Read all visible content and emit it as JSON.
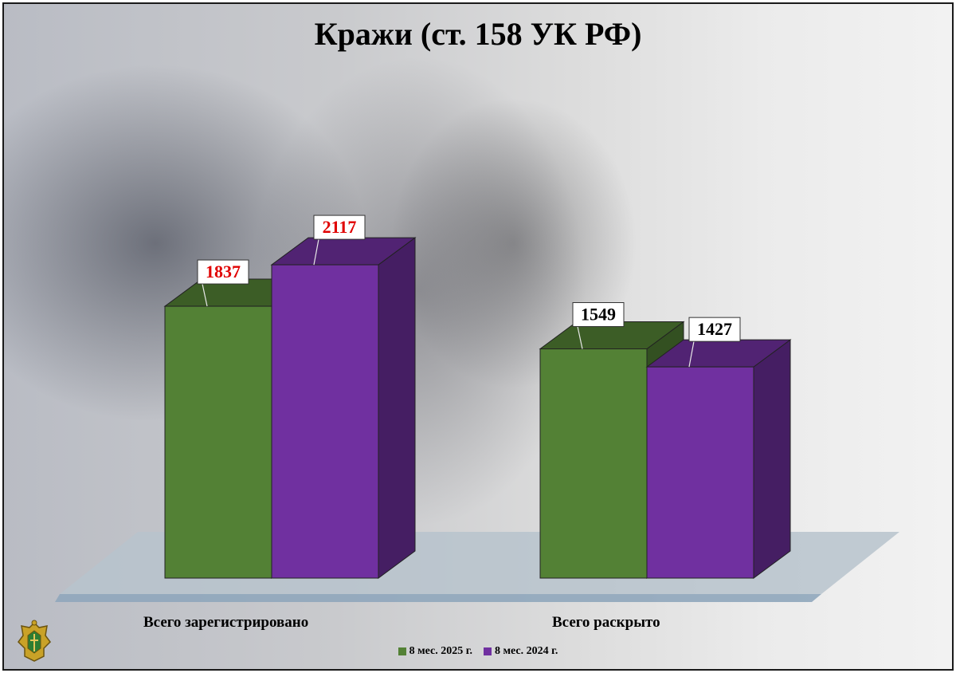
{
  "title": "Кражи (ст. 158 УК РФ)",
  "chart_data": {
    "type": "bar",
    "categories": [
      "Всего зарегистрировано",
      "Всего раскрыто"
    ],
    "series": [
      {
        "name": "8 мес. 2025 г.",
        "values": [
          1837,
          1549
        ],
        "color": "#538135"
      },
      {
        "name": "8 мес. 2024 г.",
        "values": [
          2117,
          1427
        ],
        "color": "#7030a0"
      }
    ],
    "value_label_colors": [
      [
        "#e00000",
        "#e00000"
      ],
      [
        "#000000",
        "#000000"
      ]
    ],
    "legend_position": "bottom",
    "grid": false,
    "three_d": true
  }
}
